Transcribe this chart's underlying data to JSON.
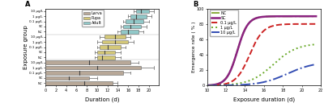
{
  "panel_A": {
    "title": "A",
    "xlabel": "Duration (d)",
    "ylabel": "Exposure group",
    "colors": {
      "Larva": "#b8a898",
      "Pupa": "#d4c878",
      "Adult": "#90c8c8"
    },
    "Adult_boxes": [
      {
        "label": "10 µg/L",
        "q1": 17.5,
        "med": 18.5,
        "q3": 20.0,
        "whislo": 17.0,
        "whishi": 21.0
      },
      {
        "label": "1 µg/L",
        "q1": 16.5,
        "med": 17.5,
        "q3": 19.5,
        "whislo": 16.0,
        "whishi": 20.5
      },
      {
        "label": "0.1 µg/L",
        "q1": 15.5,
        "med": 17.0,
        "q3": 19.0,
        "whislo": 15.0,
        "whishi": 20.0
      },
      {
        "label": "SC",
        "q1": 15.0,
        "med": 16.5,
        "q3": 18.5,
        "whislo": 14.5,
        "whishi": 19.5
      },
      {
        "label": "NC",
        "q1": 14.5,
        "med": 16.0,
        "q3": 18.0,
        "whislo": 14.0,
        "whishi": 19.0
      }
    ],
    "Pupa_boxes": [
      {
        "label": "10 µg/L",
        "q1": 11.5,
        "med": 13.5,
        "q3": 15.5,
        "whislo": 10.5,
        "whishi": 16.5
      },
      {
        "label": "1 µg/L",
        "q1": 11.0,
        "med": 13.5,
        "q3": 16.0,
        "whislo": 10.0,
        "whishi": 17.0
      },
      {
        "label": "0.1 µg/L",
        "q1": 10.5,
        "med": 12.0,
        "q3": 14.5,
        "whislo": 10.0,
        "whishi": 15.5
      },
      {
        "label": "SC",
        "q1": 10.0,
        "med": 11.5,
        "q3": 13.5,
        "whislo": 9.5,
        "whishi": 14.5
      },
      {
        "label": "NC",
        "q1": 10.0,
        "med": 11.0,
        "q3": 13.5,
        "whislo": 9.5,
        "whishi": 14.5
      }
    ],
    "Larva_boxes": [
      {
        "label": "10 µg/L",
        "q1": 0.0,
        "med": 8.5,
        "q3": 16.5,
        "whislo": 0.0,
        "whishi": 18.0
      },
      {
        "label": "1 µg/L",
        "q1": 0.0,
        "med": 10.0,
        "q3": 18.5,
        "whislo": 0.0,
        "whishi": 21.0
      },
      {
        "label": "0.1 µg/L",
        "q1": 0.0,
        "med": 6.5,
        "q3": 15.0,
        "whislo": 0.0,
        "whishi": 16.5
      },
      {
        "label": "SC",
        "q1": 0.0,
        "med": 4.5,
        "q3": 8.5,
        "whislo": 0.0,
        "whishi": 10.0
      },
      {
        "label": "NC",
        "q1": 0.0,
        "med": 7.5,
        "q3": 13.0,
        "whislo": 0.0,
        "whishi": 14.0
      }
    ],
    "xlim": [
      0,
      22
    ],
    "xticks": [
      0,
      2,
      4,
      6,
      8,
      10,
      12,
      14,
      16,
      18,
      20
    ]
  },
  "panel_B": {
    "title": "B",
    "xlabel": "Exposure duration (d)",
    "ylabel": "Emergence rate ( % )",
    "xlim": [
      10,
      22
    ],
    "ylim": [
      0,
      100
    ],
    "xticks": [
      10,
      12,
      14,
      16,
      18,
      20,
      22
    ],
    "yticks": [
      0,
      20,
      40,
      60,
      80,
      100
    ],
    "series": [
      {
        "label": "NC",
        "color": "#8aab3c",
        "linestyle": "-.",
        "linewidth": 1.4,
        "k": 1.8,
        "x0": 13.2,
        "ymax": 90
      },
      {
        "label": "SC",
        "color": "#8b2380",
        "linestyle": "-",
        "linewidth": 1.8,
        "k": 1.8,
        "x0": 13.2,
        "ymax": 90
      },
      {
        "label": "0.1 µg/L",
        "color": "#cc2222",
        "linestyle": "--",
        "linewidth": 1.4,
        "k": 1.4,
        "x0": 14.5,
        "ymax": 80
      },
      {
        "label": "1 µg/L",
        "color": "#6aaa2a",
        "linestyle": ":",
        "linewidth": 1.4,
        "k": 0.8,
        "x0": 17.0,
        "ymax": 55
      },
      {
        "label": "10 µg/L",
        "color": "#334db3",
        "linestyle": "-.",
        "linewidth": 1.4,
        "k": 0.7,
        "x0": 18.5,
        "ymax": 31
      }
    ]
  }
}
